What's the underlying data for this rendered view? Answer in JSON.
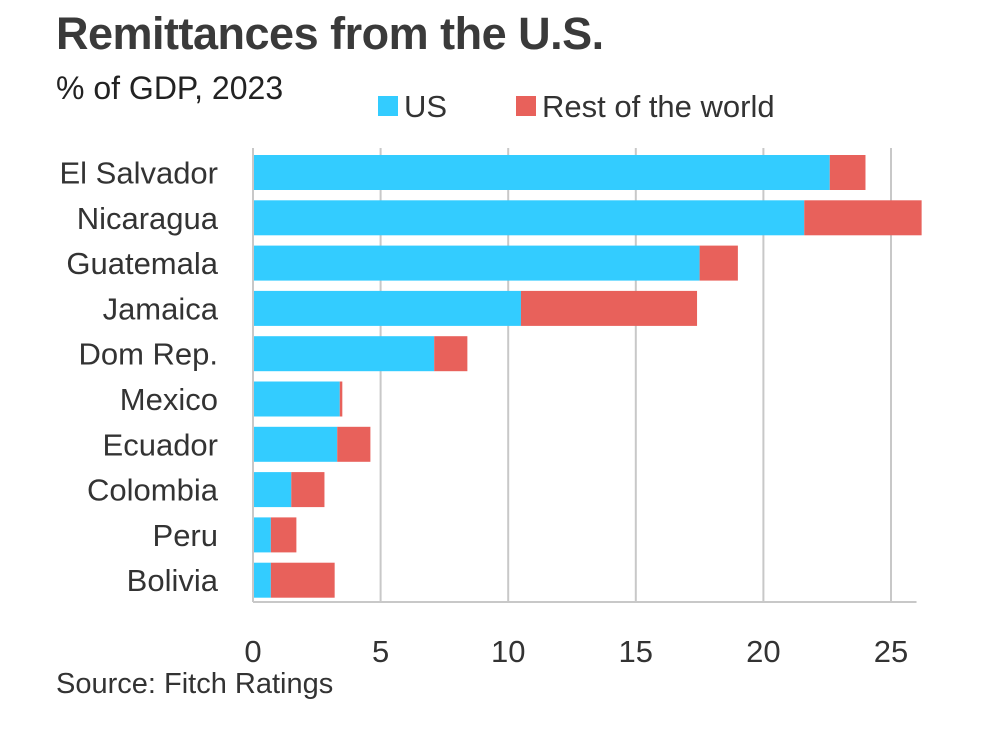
{
  "chart_data": {
    "type": "bar",
    "orientation": "horizontal",
    "stacked": true,
    "title": "Remittances from the U.S.",
    "subtitle": "% of GDP, 2023",
    "source": "Source: Fitch Ratings",
    "categories": [
      "El Salvador",
      "Nicaragua",
      "Guatemala",
      "Jamaica",
      "Dom Rep.",
      "Mexico",
      "Ecuador",
      "Colombia",
      "Peru",
      "Bolivia"
    ],
    "series": [
      {
        "name": "US",
        "color": "#33ccff",
        "values": [
          22.6,
          21.6,
          17.5,
          10.5,
          7.1,
          3.4,
          3.3,
          1.5,
          0.7,
          0.7
        ]
      },
      {
        "name": "Rest of the world",
        "color": "#e8615b",
        "values": [
          1.4,
          4.6,
          1.5,
          6.9,
          1.3,
          0.1,
          1.3,
          1.3,
          1.0,
          2.5
        ]
      }
    ],
    "xlim": [
      0,
      26
    ],
    "xticks": [
      0,
      5,
      10,
      15,
      20,
      25
    ],
    "grid": "vertical",
    "legend": "top"
  }
}
